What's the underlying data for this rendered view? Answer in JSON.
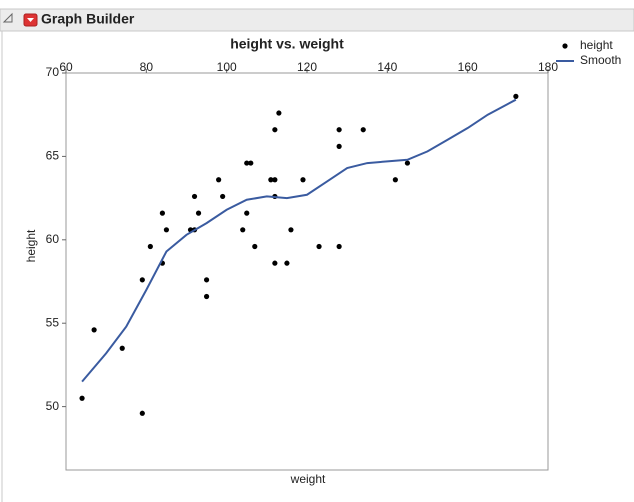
{
  "window_title": "Graph Builder",
  "chart_data": {
    "type": "scatter",
    "title": "height vs. weight",
    "x_label": "weight",
    "y_label": "height",
    "xlim": [
      60,
      180
    ],
    "xticks": [
      60,
      80,
      100,
      120,
      140,
      160,
      180
    ],
    "ylim": [
      46.2,
      70
    ],
    "yticks": [
      50,
      55,
      60,
      65,
      70
    ],
    "legend": "top-right",
    "series": [
      {
        "name": "height",
        "type": "scatter",
        "color": "#000000",
        "x": [
          64,
          67,
          74,
          79,
          79,
          81,
          84,
          84,
          85,
          91,
          92,
          92,
          93,
          95,
          95,
          98,
          99,
          104,
          105,
          105,
          106,
          107,
          111,
          112,
          112,
          112,
          112,
          113,
          115,
          116,
          119,
          123,
          128,
          128,
          128,
          134,
          142,
          145,
          172
        ],
        "values": [
          50.5,
          54.6,
          53.5,
          49.6,
          57.6,
          59.6,
          61.6,
          58.6,
          60.6,
          60.6,
          62.6,
          60.6,
          61.6,
          57.6,
          56.6,
          63.6,
          62.6,
          60.6,
          64.6,
          61.6,
          64.6,
          59.6,
          63.6,
          66.6,
          63.6,
          62.6,
          58.6,
          67.6,
          58.6,
          60.6,
          63.6,
          59.6,
          66.6,
          65.6,
          59.6,
          66.6,
          63.6,
          64.6,
          68.6
        ]
      },
      {
        "name": "Smooth",
        "type": "line",
        "color": "#3a5ba0",
        "x": [
          64,
          70,
          75,
          80,
          85,
          90,
          95,
          100,
          105,
          110,
          115,
          120,
          125,
          130,
          135,
          140,
          145,
          150,
          155,
          160,
          165,
          172
        ],
        "values": [
          51.5,
          53.2,
          54.8,
          57,
          59.3,
          60.3,
          61,
          61.8,
          62.4,
          62.6,
          62.5,
          62.7,
          63.5,
          64.3,
          64.6,
          64.7,
          64.8,
          65.3,
          66,
          66.7,
          67.5,
          68.4
        ]
      }
    ]
  }
}
